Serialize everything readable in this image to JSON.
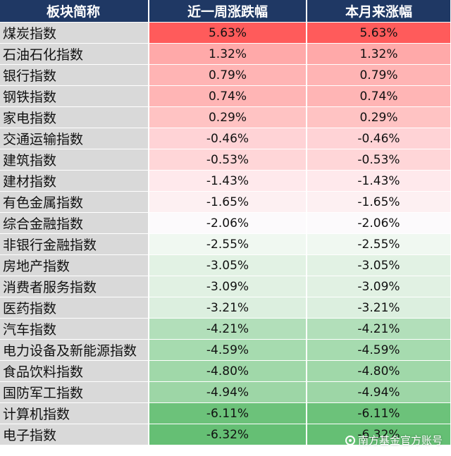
{
  "table": {
    "headers": [
      "板块简称",
      "近一周涨跌幅",
      "本月来涨幅"
    ],
    "rows": [
      {
        "name": "煤炭指数",
        "week": "5.63%",
        "month": "5.63%",
        "color": "#ff5b5b"
      },
      {
        "name": "石油石化指数",
        "week": "1.32%",
        "month": "1.32%",
        "color": "#ffa9a9"
      },
      {
        "name": "银行指数",
        "week": "0.79%",
        "month": "0.79%",
        "color": "#ffb4b4"
      },
      {
        "name": "钢铁指数",
        "week": "0.74%",
        "month": "0.74%",
        "color": "#ffb5b5"
      },
      {
        "name": "家电指数",
        "week": "0.29%",
        "month": "0.29%",
        "color": "#ffc3c3"
      },
      {
        "name": "交通运输指数",
        "week": "-0.46%",
        "month": "-0.46%",
        "color": "#ffd3d6"
      },
      {
        "name": "建筑指数",
        "week": "-0.53%",
        "month": "-0.53%",
        "color": "#ffd6d8"
      },
      {
        "name": "建材指数",
        "week": "-1.43%",
        "month": "-1.43%",
        "color": "#ffe9ec"
      },
      {
        "name": "有色金属指数",
        "week": "-1.65%",
        "month": "-1.65%",
        "color": "#fdf0f2"
      },
      {
        "name": "综合金融指数",
        "week": "-2.06%",
        "month": "-2.06%",
        "color": "#fcfafc"
      },
      {
        "name": "非银行金融指数",
        "week": "-2.55%",
        "month": "-2.55%",
        "color": "#f0f8f1"
      },
      {
        "name": "房地产指数",
        "week": "-3.05%",
        "month": "-3.05%",
        "color": "#e2f2e4"
      },
      {
        "name": "消费者服务指数",
        "week": "-3.09%",
        "month": "-3.09%",
        "color": "#e1f1e3"
      },
      {
        "name": "医药指数",
        "week": "-3.21%",
        "month": "-3.21%",
        "color": "#dcefdf"
      },
      {
        "name": "汽车指数",
        "week": "-4.21%",
        "month": "-4.21%",
        "color": "#b2dfba"
      },
      {
        "name": "电力设备及新能源指数",
        "week": "-4.59%",
        "month": "-4.59%",
        "color": "#a6dbaf"
      },
      {
        "name": "食品饮料指数",
        "week": "-4.80%",
        "month": "-4.80%",
        "color": "#a0d8a9"
      },
      {
        "name": "国防军工指数",
        "week": "-4.94%",
        "month": "-4.94%",
        "color": "#9dd6a6"
      },
      {
        "name": "计算机指数",
        "week": "-6.11%",
        "month": "-6.11%",
        "color": "#6cc27a"
      },
      {
        "name": "电子指数",
        "week": "-6.32%",
        "month": "-6.32%",
        "color": "#65bf74"
      }
    ]
  },
  "watermark": {
    "text": "南方基金官方账号",
    "icon": "brand-swirl-icon"
  }
}
